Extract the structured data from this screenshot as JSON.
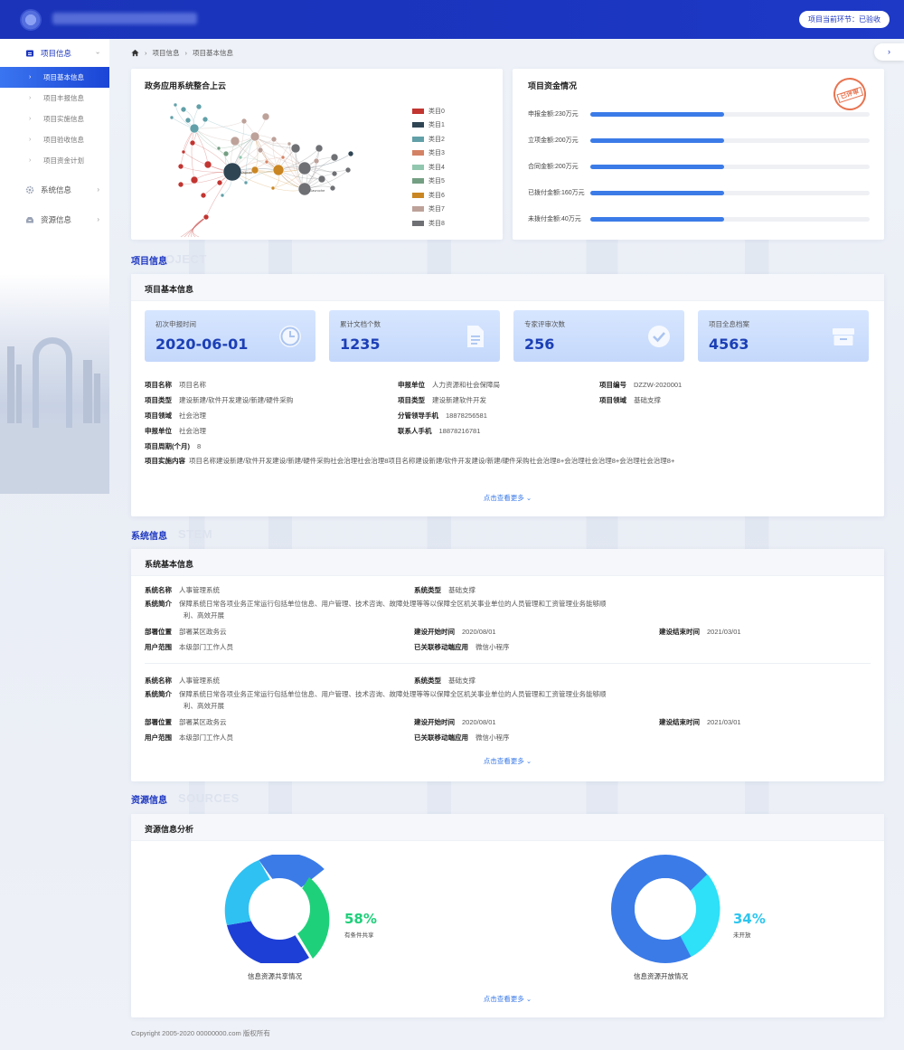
{
  "header": {
    "stage": "项目当前环节：已验收"
  },
  "sidebar": {
    "groups": [
      {
        "label": "项目信息",
        "icon": "folder-icon"
      },
      {
        "label": "系统信息",
        "icon": "gear-icon"
      },
      {
        "label": "资源信息",
        "icon": "inbox-icon"
      }
    ],
    "project_items": [
      "项目基本信息",
      "项目丰报信息",
      "项目实施信息",
      "项目验收信息",
      "项目资金计划"
    ]
  },
  "breadcrumb": {
    "level1": "项目信息",
    "level2": "项目基本信息"
  },
  "graph_card": {
    "title": "政务应用系统整合上云",
    "legend": [
      {
        "label": "类目0",
        "color": "#c23531"
      },
      {
        "label": "类目1",
        "color": "#2f4554"
      },
      {
        "label": "类目2",
        "color": "#61a0a8"
      },
      {
        "label": "类目3",
        "color": "#d48265"
      },
      {
        "label": "类目4",
        "color": "#91c7ae"
      },
      {
        "label": "类目5",
        "color": "#749f83"
      },
      {
        "label": "类目6",
        "color": "#ca8622"
      },
      {
        "label": "类目7",
        "color": "#bda29a"
      },
      {
        "label": "类目8",
        "color": "#6e7074"
      }
    ],
    "node_labels": {
      "center": "Valjean",
      "right": "Gavroche"
    }
  },
  "funding_card": {
    "title": "项目资金情况",
    "stamp": "已评审",
    "rows": [
      {
        "label": "申报金额:230万元",
        "fraction": 0.48
      },
      {
        "label": "立项金额:200万元",
        "fraction": 0.48
      },
      {
        "label": "合同金额:200万元",
        "fraction": 0.48
      },
      {
        "label": "已拨付金额:160万元",
        "fraction": 0.48
      },
      {
        "label": "未拨付金额:40万元",
        "fraction": 0.48
      }
    ]
  },
  "project_section": {
    "title": "项目信息",
    "watermark": "OJECT",
    "panel_title": "项目基本信息",
    "stats": [
      {
        "label": "初次申报时间",
        "value": "2020-06-01",
        "icon": "clock-icon"
      },
      {
        "label": "累计文档个数",
        "value": "1235",
        "icon": "document-icon"
      },
      {
        "label": "专家评审次数",
        "value": "256",
        "icon": "check-circle-icon"
      },
      {
        "label": "项目全息档案",
        "value": "4563",
        "icon": "archive-box-icon"
      }
    ],
    "fields": {
      "name": {
        "k": "项目名称",
        "v": "项目名称"
      },
      "type1": {
        "k": "项目类型",
        "v": "建设新建/软件开发建设/新建/硬件采购"
      },
      "domain1": {
        "k": "项目领域",
        "v": "社会治理"
      },
      "unit1": {
        "k": "申报单位",
        "v": "社会治理"
      },
      "period": {
        "k": "项目周期(个月)",
        "v": "8"
      },
      "content": {
        "k": "项目实施内容",
        "v": "项目名称建设新建/软件开发建设/新建/硬件采购社会治理社会治理8项目名称建设新建/软件开发建设/新建/硬件采购社会治理8+会治理社会治理8+会治理社会治理8+"
      },
      "unit2": {
        "k": "申报单位",
        "v": "人力资源和社会保障局"
      },
      "type2": {
        "k": "项目类型",
        "v": "建设新建软件开发"
      },
      "leader_phone": {
        "k": "分管领导手机",
        "v": "18878256581"
      },
      "contact_phone": {
        "k": "联系人手机",
        "v": "18878216781"
      },
      "code": {
        "k": "项目编号",
        "v": "DZZW-2020001"
      },
      "domain2": {
        "k": "项目领域",
        "v": "基础支撑"
      }
    },
    "more": "点击查看更多"
  },
  "system_section": {
    "title": "系统信息",
    "watermark": "STEM",
    "panel_title": "系统基本信息",
    "records": [
      {
        "name_k": "系统名称",
        "name_v": "人事管理系统",
        "type_k": "系统类型",
        "type_v": "基础支撑",
        "intro_k": "系统简介",
        "intro_v": "保障系统日常各项业务正常运行包括单位信息、用户管理、技术咨询、故障处理等等以保障全区机关事业单位的人员管理和工资管理业务能够顺利、高效开展",
        "deploy_k": "部署位置",
        "deploy_v": "部署某区政务云",
        "start_k": "建设开始时间",
        "start_v": "2020/08/01",
        "end_k": "建设结束时间",
        "end_v": "2021/03/01",
        "users_k": "用户范围",
        "users_v": "本级部门工作人员",
        "mobile_k": "已关联移动端应用",
        "mobile_v": "微信小程序"
      },
      {
        "name_k": "系统名称",
        "name_v": "人事管理系统",
        "type_k": "系统类型",
        "type_v": "基础支撑",
        "intro_k": "系统简介",
        "intro_v": "保障系统日常各项业务正常运行包括单位信息、用户管理、技术咨询、故障处理等等以保障全区机关事业单位的人员管理和工资管理业务能够顺利、高效开展",
        "deploy_k": "部署位置",
        "deploy_v": "部署某区政务云",
        "start_k": "建设开始时间",
        "start_v": "2020/08/01",
        "end_k": "建设结束时间",
        "end_v": "2021/03/01",
        "users_k": "用户范围",
        "users_v": "本级部门工作人员",
        "mobile_k": "已关联移动端应用",
        "mobile_v": "微信小程序"
      }
    ],
    "more": "点击查看更多"
  },
  "resource_section": {
    "title": "资源信息",
    "watermark": "SOURCES",
    "panel_title": "资源信息分析",
    "donuts": [
      {
        "caption": "信息资源共享情况",
        "percent": "58%",
        "sub": "有条件共享",
        "pct_color": "#1fcf7a"
      },
      {
        "caption": "信息资源开放情况",
        "percent": "34%",
        "sub": "未开放",
        "pct_color": "#2ec6ef"
      }
    ],
    "more": "点击查看更多"
  },
  "footer": "Copyright 2005-2020 00000000.com 版权所有"
}
